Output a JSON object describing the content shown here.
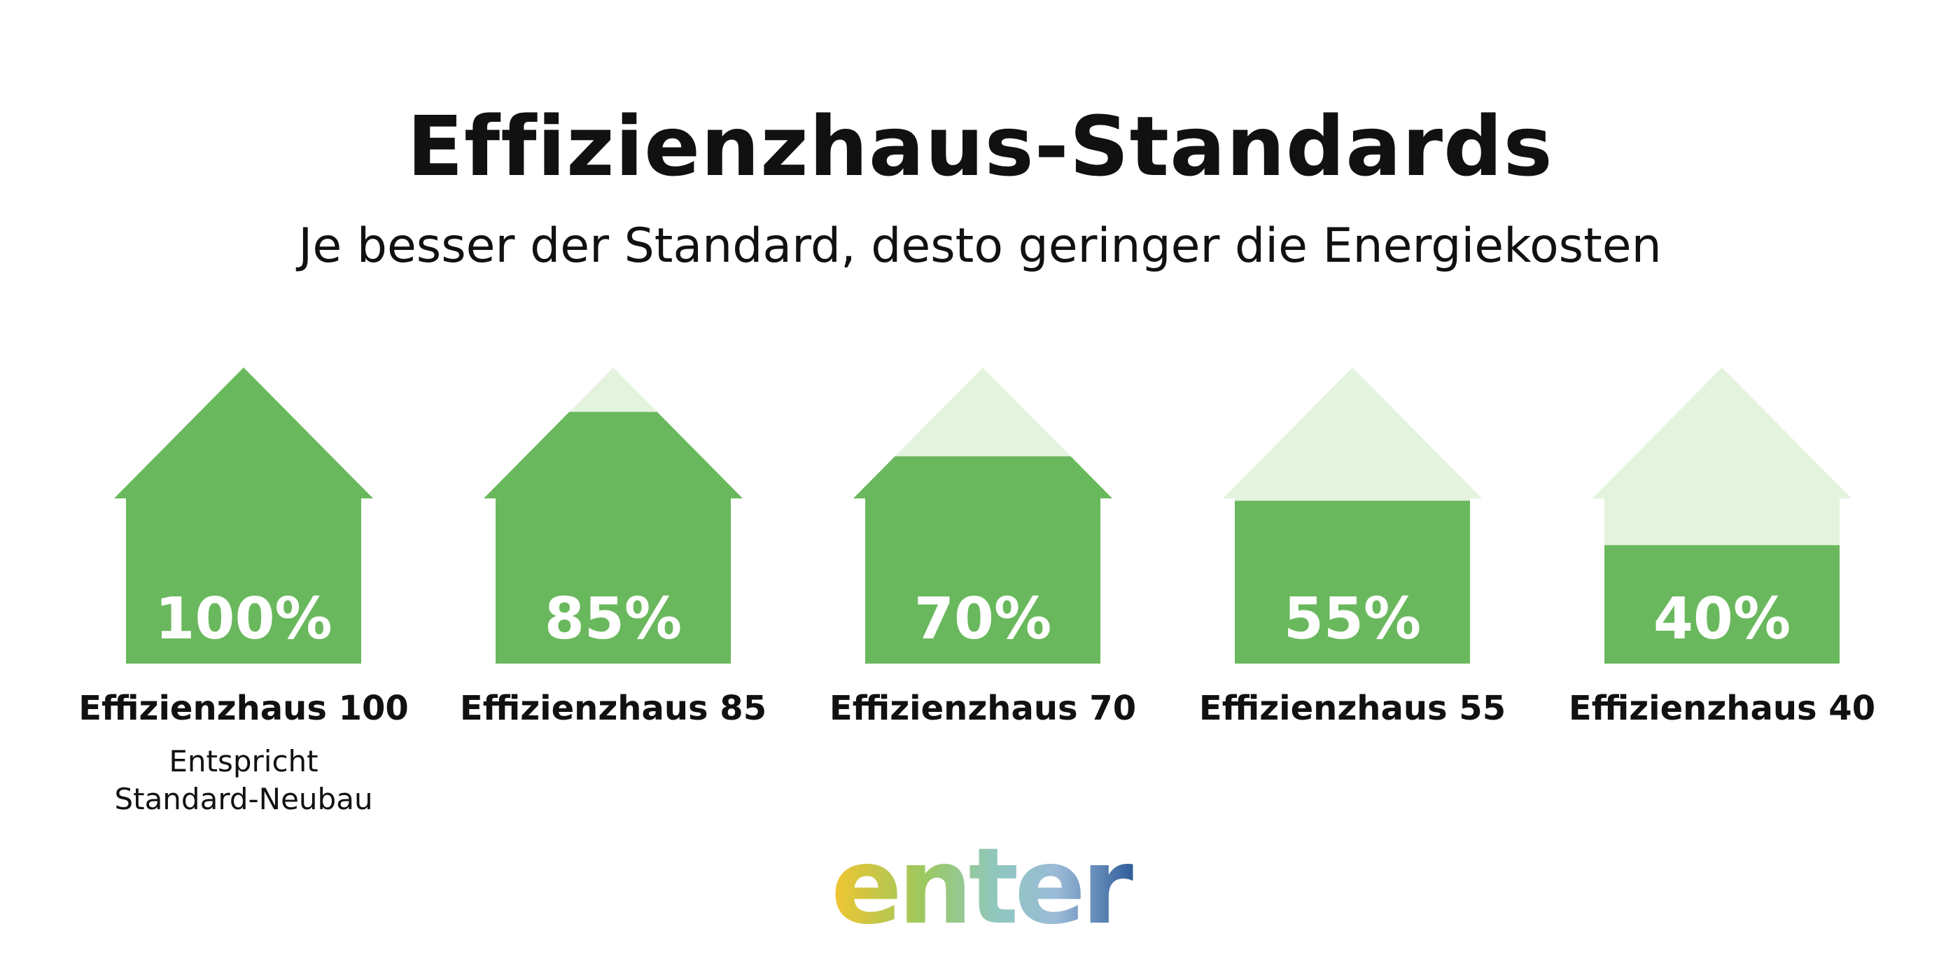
{
  "title": "Effizienzhaus-Standards",
  "subtitle": "Je besser der Standard, desto geringer die Energiekosten",
  "chart_data": {
    "type": "bar",
    "title": "Effizienzhaus-Standards",
    "subtitle": "Je besser der Standard, desto geringer die Energiekosten",
    "categories": [
      "Effizienzhaus 100",
      "Effizienzhaus 85",
      "Effizienzhaus 70",
      "Effizienzhaus 55",
      "Effizienzhaus 40"
    ],
    "values": [
      100,
      85,
      70,
      55,
      40
    ],
    "value_labels": [
      "100%",
      "85%",
      "70%",
      "55%",
      "40%"
    ],
    "ylim": [
      0,
      100
    ],
    "annotations": [
      {
        "category": "Effizienzhaus 100",
        "lines": [
          "Entspricht",
          "Standard-Neubau"
        ]
      }
    ],
    "colors": {
      "fill": "#6ab85d",
      "empty": "#e3f3dd"
    }
  },
  "logo": {
    "text": "enter",
    "icon": "enter-logo"
  }
}
